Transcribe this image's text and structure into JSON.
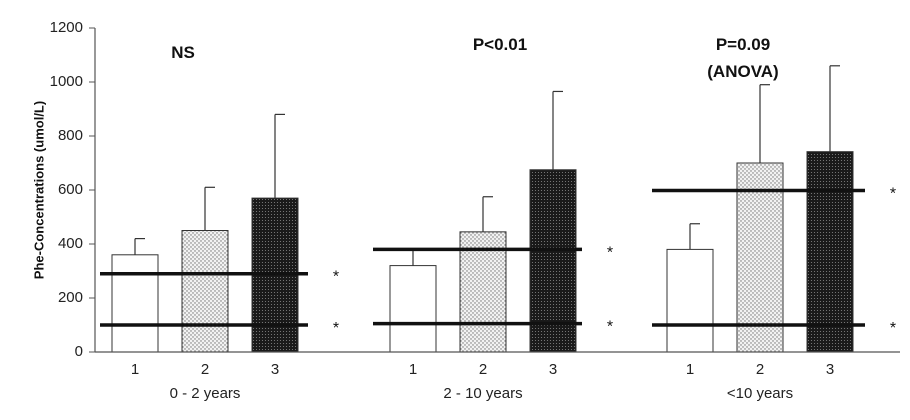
{
  "chart_data": {
    "type": "bar",
    "title": "",
    "xlabel": "",
    "ylabel": "Phe-Concentrations (umol/L)",
    "ylim": [
      0,
      1200
    ],
    "yticks": [
      0,
      200,
      400,
      600,
      800,
      1000,
      1200
    ],
    "categories": [
      "1",
      "2",
      "3"
    ],
    "legend": [],
    "groups": [
      {
        "name": "0 - 2 years",
        "annotation": [
          "NS"
        ],
        "values": [
          360,
          450,
          570
        ],
        "error_upper": [
          420,
          610,
          880
        ],
        "reference_lines": [
          290,
          100
        ],
        "reference_markers": [
          "*",
          "*"
        ]
      },
      {
        "name": "2 - 10 years",
        "annotation": [
          "P<0.01"
        ],
        "values": [
          320,
          445,
          675
        ],
        "error_upper": [
          380,
          575,
          965
        ],
        "reference_lines": [
          380,
          105
        ],
        "reference_markers": [
          "*",
          "*"
        ]
      },
      {
        "name": "<10 years",
        "annotation": [
          "P=0.09",
          "(ANOVA)"
        ],
        "values": [
          380,
          700,
          742
        ],
        "error_upper": [
          475,
          990,
          1060
        ],
        "reference_lines": [
          598,
          100
        ],
        "reference_markers": [
          "*",
          "*"
        ]
      }
    ],
    "bar_styles": [
      "white",
      "light-dotted",
      "dark-dotted"
    ]
  }
}
